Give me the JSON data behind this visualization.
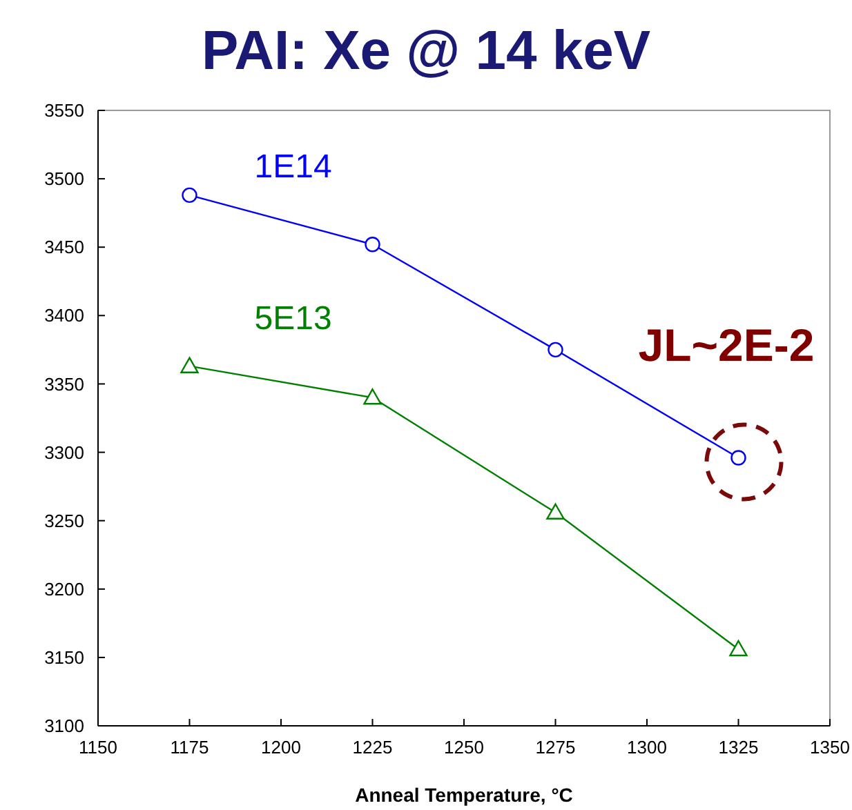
{
  "chart_data": {
    "type": "line",
    "title": "PAI: Xe @ 14 keV",
    "xlabel": "Anneal Temperature, °C",
    "x": [
      1175,
      1225,
      1275,
      1325
    ],
    "series": [
      {
        "name": "1E14",
        "color": "#0000ff",
        "marker": "circle",
        "values": [
          3488,
          3452,
          3375,
          3296
        ]
      },
      {
        "name": "5E13",
        "color": "#008000",
        "marker": "triangle",
        "values": [
          3363,
          3340,
          3256,
          3156
        ]
      }
    ],
    "annotations": [
      {
        "text": "JL~2E-2",
        "x": 1325,
        "y": 3296
      }
    ],
    "xlim": [
      1150,
      1350
    ],
    "xticks": [
      1150,
      1175,
      1200,
      1225,
      1250,
      1275,
      1300,
      1325,
      1350
    ],
    "ylim": [
      3100,
      3550
    ],
    "yticks": [
      3100,
      3150,
      3200,
      3250,
      3300,
      3350,
      3400,
      3450,
      3500,
      3550
    ],
    "grid": false,
    "line_style": "solid"
  }
}
